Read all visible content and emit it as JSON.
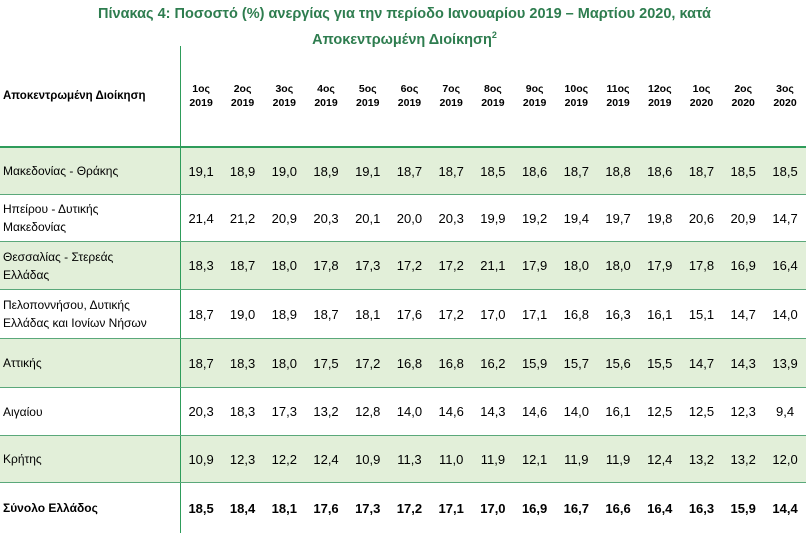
{
  "title": {
    "line1": "Πίνακας 4: Ποσοστό (%) ανεργίας για την περίοδο Ιανουαρίου 2019 – Μαρτίου 2020, κατά",
    "line2": "Αποκεντρωμένη Διοίκηση",
    "footnote": "2"
  },
  "table": {
    "first_header": "Αποκεντρωμένη Διοίκηση",
    "months": [
      {
        "m": "1ος",
        "y": "2019"
      },
      {
        "m": "2ος",
        "y": "2019"
      },
      {
        "m": "3ος",
        "y": "2019"
      },
      {
        "m": "4ος",
        "y": "2019"
      },
      {
        "m": "5ος",
        "y": "2019"
      },
      {
        "m": "6ος",
        "y": "2019"
      },
      {
        "m": "7ος",
        "y": "2019"
      },
      {
        "m": "8ος",
        "y": "2019"
      },
      {
        "m": "9ος",
        "y": "2019"
      },
      {
        "m": "10ος",
        "y": "2019"
      },
      {
        "m": "11ος",
        "y": "2019"
      },
      {
        "m": "12ος",
        "y": "2019"
      },
      {
        "m": "1ος",
        "y": "2020"
      },
      {
        "m": "2ος",
        "y": "2020"
      },
      {
        "m": "3ος",
        "y": "2020"
      }
    ],
    "rows": [
      {
        "label_lines": [
          "Μακεδονίας - Θράκης"
        ],
        "shaded": true,
        "values": [
          "19,1",
          "18,9",
          "19,0",
          "18,9",
          "19,1",
          "18,7",
          "18,7",
          "18,5",
          "18,6",
          "18,7",
          "18,8",
          "18,6",
          "18,7",
          "18,5",
          "18,5"
        ]
      },
      {
        "label_lines": [
          "Ηπείρου - Δυτικής",
          "Μακεδονίας"
        ],
        "shaded": false,
        "values": [
          "21,4",
          "21,2",
          "20,9",
          "20,3",
          "20,1",
          "20,0",
          "20,3",
          "19,9",
          "19,2",
          "19,4",
          "19,7",
          "19,8",
          "20,6",
          "20,9",
          "14,7"
        ]
      },
      {
        "label_lines": [
          "Θεσσαλίας - Στερεάς",
          "Ελλάδας"
        ],
        "shaded": true,
        "values": [
          "18,3",
          "18,7",
          "18,0",
          "17,8",
          "17,3",
          "17,2",
          "17,2",
          "21,1",
          "17,9",
          "18,0",
          "18,0",
          "17,9",
          "17,8",
          "16,9",
          "16,4"
        ]
      },
      {
        "label_lines": [
          "Πελοποννήσου, Δυτικής",
          "Ελλάδας και Ιονίων Νήσων"
        ],
        "shaded": false,
        "values": [
          "18,7",
          "19,0",
          "18,9",
          "18,7",
          "18,1",
          "17,6",
          "17,2",
          "17,0",
          "17,1",
          "16,8",
          "16,3",
          "16,1",
          "15,1",
          "14,7",
          "14,0"
        ]
      },
      {
        "label_lines": [
          "Αττικής"
        ],
        "shaded": true,
        "values": [
          "18,7",
          "18,3",
          "18,0",
          "17,5",
          "17,2",
          "16,8",
          "16,8",
          "16,2",
          "15,9",
          "15,7",
          "15,6",
          "15,5",
          "14,7",
          "14,3",
          "13,9"
        ]
      },
      {
        "label_lines": [
          "Αιγαίου"
        ],
        "shaded": false,
        "values": [
          "20,3",
          "18,3",
          "17,3",
          "13,2",
          "12,8",
          "14,0",
          "14,6",
          "14,3",
          "14,6",
          "14,0",
          "16,1",
          "12,5",
          "12,5",
          "12,3",
          "9,4"
        ]
      },
      {
        "label_lines": [
          "Κρήτης"
        ],
        "shaded": true,
        "values": [
          "10,9",
          "12,3",
          "12,2",
          "12,4",
          "10,9",
          "11,3",
          "11,0",
          "11,9",
          "12,1",
          "11,9",
          "11,9",
          "12,4",
          "13,2",
          "13,2",
          "12,0"
        ]
      },
      {
        "label_lines": [
          "Σύνολο Ελλάδος"
        ],
        "shaded": false,
        "total": true,
        "values": [
          "18,5",
          "18,4",
          "18,1",
          "17,6",
          "17,3",
          "17,2",
          "17,1",
          "17,0",
          "16,9",
          "16,7",
          "16,6",
          "16,4",
          "16,3",
          "15,9",
          "14,4"
        ]
      }
    ]
  }
}
